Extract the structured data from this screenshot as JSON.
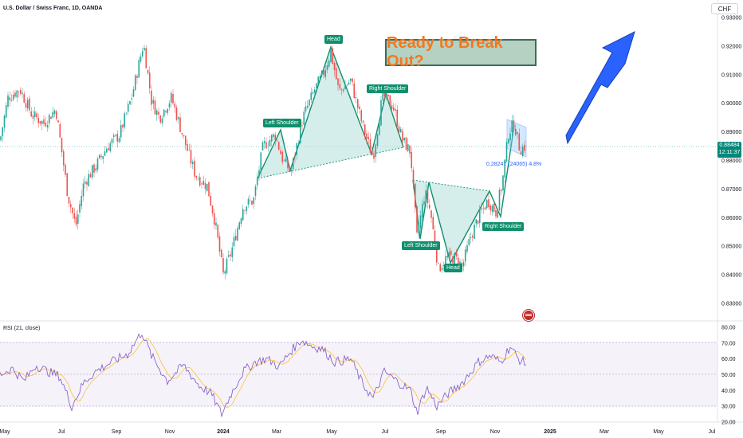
{
  "chart_title": "U.S. Dollar / Swiss Franc, 1D, OANDA",
  "currency_label": "CHF",
  "headline": "Ready to Break Out?",
  "last_price": "0.88484",
  "countdown": "12:11:37",
  "measure_label": "0.28247 (24065) 4.8%",
  "rsi_title": "RSI (21, close)",
  "pattern_labels": {
    "head_top": "Head",
    "right_shoulder_top": "Right Shoulder",
    "left_shoulder_top": "Left Shoulder",
    "left_shoulder_bottom": "Left Shoulder",
    "head_bottom": "Head",
    "right_shoulder_bottom": "Right Shoulder"
  },
  "colors": {
    "up": "#26a69a",
    "down": "#ef5350",
    "rsi_line": "#7e57c2",
    "rsi_ma": "#f9c846",
    "pattern_fill": "#b2dfdb",
    "pattern_line": "#0f8f6c",
    "arrow": "#2962ff",
    "accent_text": "#f4781f"
  },
  "chart_data": {
    "type": "candlestick",
    "price_axis": {
      "ticks": [
        "0.93000",
        "0.92000",
        "0.91000",
        "0.90000",
        "0.89000",
        "0.88000",
        "0.87000",
        "0.86000",
        "0.85000",
        "0.84000",
        "0.83000"
      ],
      "range": [
        0.824,
        0.934
      ]
    },
    "rsi_axis": {
      "ticks": [
        "80.00",
        "70.00",
        "60.00",
        "50.00",
        "40.00",
        "30.00",
        "20.00"
      ],
      "range": [
        18,
        82
      ],
      "bands": [
        30,
        70
      ]
    },
    "time_axis": [
      "May",
      "Jul",
      "Sep",
      "Nov",
      "2024",
      "Mar",
      "May",
      "Jul",
      "Sep",
      "Nov",
      "2025",
      "Mar",
      "May",
      "Jul"
    ],
    "close_anchors": [
      [
        0,
        0.887
      ],
      [
        10,
        0.902
      ],
      [
        25,
        0.905
      ],
      [
        40,
        0.896
      ],
      [
        55,
        0.893
      ],
      [
        70,
        0.898
      ],
      [
        85,
        0.868
      ],
      [
        95,
        0.857
      ],
      [
        105,
        0.872
      ],
      [
        120,
        0.878
      ],
      [
        135,
        0.885
      ],
      [
        150,
        0.889
      ],
      [
        165,
        0.902
      ],
      [
        180,
        0.921
      ],
      [
        190,
        0.901
      ],
      [
        200,
        0.895
      ],
      [
        215,
        0.902
      ],
      [
        230,
        0.888
      ],
      [
        245,
        0.875
      ],
      [
        260,
        0.871
      ],
      [
        270,
        0.858
      ],
      [
        280,
        0.84
      ],
      [
        290,
        0.848
      ],
      [
        305,
        0.864
      ],
      [
        318,
        0.866
      ],
      [
        330,
        0.885
      ],
      [
        345,
        0.889
      ],
      [
        355,
        0.88
      ],
      [
        365,
        0.876
      ],
      [
        380,
        0.895
      ],
      [
        395,
        0.905
      ],
      [
        405,
        0.91
      ],
      [
        415,
        0.918
      ],
      [
        425,
        0.904
      ],
      [
        440,
        0.908
      ],
      [
        455,
        0.892
      ],
      [
        468,
        0.881
      ],
      [
        480,
        0.903
      ],
      [
        493,
        0.899
      ],
      [
        505,
        0.887
      ],
      [
        515,
        0.883
      ],
      [
        523,
        0.853
      ],
      [
        533,
        0.869
      ],
      [
        540,
        0.862
      ],
      [
        550,
        0.842
      ],
      [
        560,
        0.846
      ],
      [
        570,
        0.846
      ],
      [
        580,
        0.843
      ],
      [
        590,
        0.853
      ],
      [
        600,
        0.86
      ],
      [
        612,
        0.866
      ],
      [
        622,
        0.862
      ],
      [
        630,
        0.872
      ],
      [
        638,
        0.89
      ],
      [
        645,
        0.893
      ],
      [
        652,
        0.884
      ],
      [
        660,
        0.885
      ]
    ],
    "rsi_anchors": [
      [
        0,
        50
      ],
      [
        15,
        54
      ],
      [
        30,
        46
      ],
      [
        45,
        56
      ],
      [
        60,
        52
      ],
      [
        75,
        49
      ],
      [
        90,
        30
      ],
      [
        105,
        45
      ],
      [
        120,
        52
      ],
      [
        140,
        58
      ],
      [
        160,
        63
      ],
      [
        178,
        77
      ],
      [
        190,
        62
      ],
      [
        210,
        46
      ],
      [
        230,
        56
      ],
      [
        250,
        43
      ],
      [
        265,
        38
      ],
      [
        278,
        25
      ],
      [
        290,
        38
      ],
      [
        305,
        52
      ],
      [
        320,
        58
      ],
      [
        335,
        60
      ],
      [
        350,
        55
      ],
      [
        365,
        65
      ],
      [
        378,
        72
      ],
      [
        392,
        68
      ],
      [
        405,
        66
      ],
      [
        420,
        58
      ],
      [
        440,
        60
      ],
      [
        455,
        44
      ],
      [
        468,
        35
      ],
      [
        482,
        52
      ],
      [
        500,
        45
      ],
      [
        515,
        40
      ],
      [
        523,
        26
      ],
      [
        535,
        42
      ],
      [
        548,
        30
      ],
      [
        562,
        38
      ],
      [
        580,
        45
      ],
      [
        600,
        58
      ],
      [
        615,
        62
      ],
      [
        628,
        58
      ],
      [
        640,
        68
      ],
      [
        650,
        60
      ],
      [
        660,
        57
      ]
    ],
    "patterns": [
      {
        "name": "inverse-top head and shoulders",
        "points": [
          [
            0.884,
            0
          ],
          [
            0.889,
            0
          ],
          [
            0.881,
            0
          ],
          [
            0.919,
            0
          ],
          [
            0.881,
            0
          ],
          [
            0.902,
            0
          ],
          [
            0.883,
            0
          ]
        ]
      }
    ]
  }
}
